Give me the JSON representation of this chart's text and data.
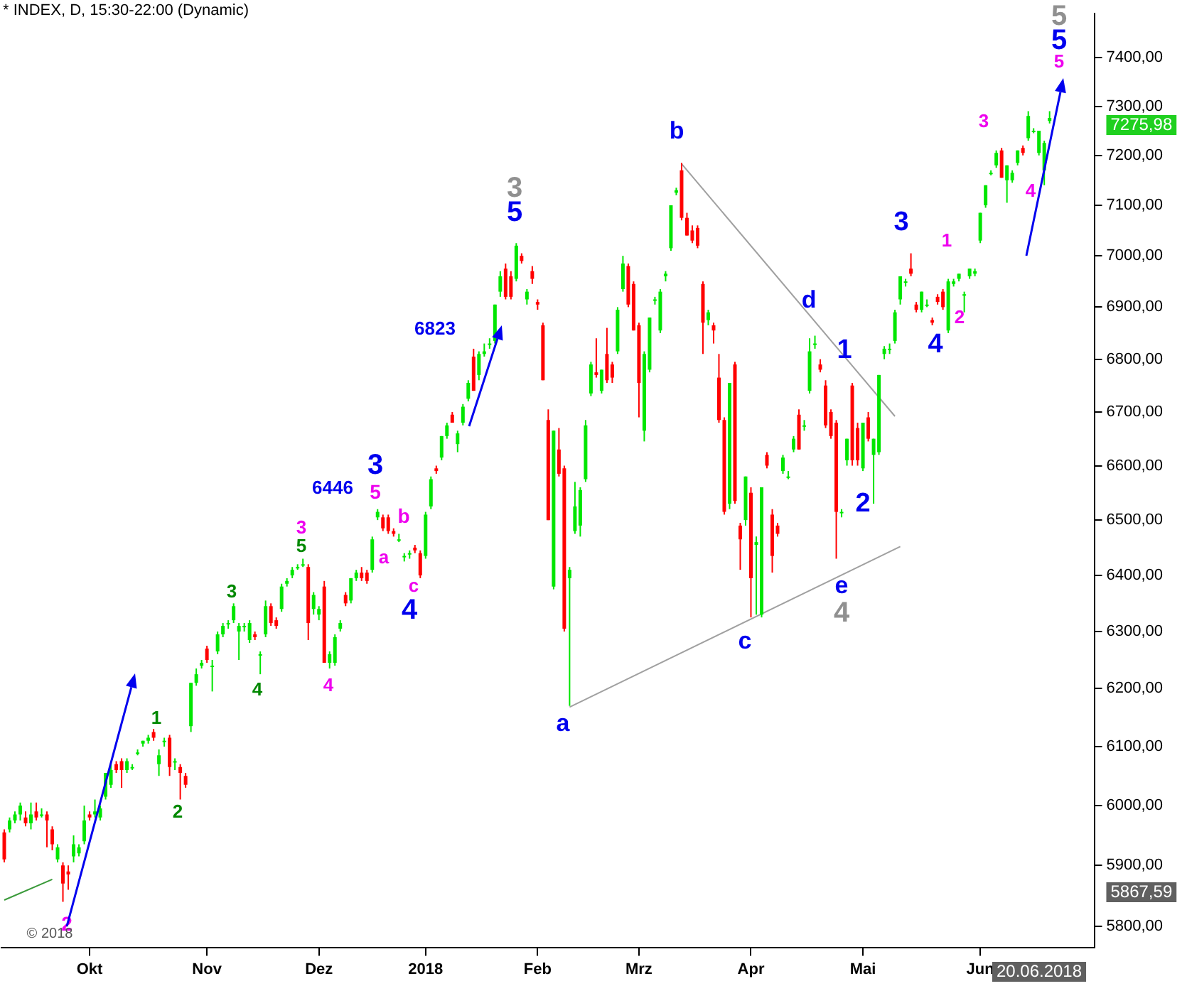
{
  "chart_data": {
    "type": "candlestick",
    "title": "* INDEX, D, 15:30-22:00 (Dynamic)",
    "log": true,
    "categories": [
      null,
      null,
      null,
      null,
      null,
      null,
      null,
      null,
      null,
      null,
      null,
      null,
      null,
      null,
      null,
      null,
      "Okt",
      null,
      null,
      null,
      null,
      null,
      null,
      null,
      null,
      null,
      null,
      null,
      null,
      null,
      null,
      null,
      null,
      null,
      null,
      null,
      null,
      null,
      "Nov",
      null,
      null,
      null,
      null,
      null,
      null,
      null,
      null,
      null,
      null,
      null,
      null,
      null,
      null,
      null,
      null,
      null,
      null,
      null,
      null,
      "Dez",
      null,
      null,
      null,
      null,
      null,
      null,
      null,
      null,
      null,
      null,
      null,
      null,
      null,
      null,
      null,
      null,
      null,
      null,
      null,
      "2018",
      null,
      null,
      null,
      null,
      null,
      null,
      null,
      null,
      null,
      null,
      null,
      null,
      null,
      null,
      null,
      null,
      null,
      null,
      null,
      null,
      "Feb",
      null,
      null,
      null,
      null,
      null,
      null,
      null,
      null,
      null,
      null,
      null,
      null,
      null,
      null,
      null,
      null,
      null,
      null,
      "Mrz",
      null,
      null,
      null,
      null,
      null,
      null,
      null,
      null,
      null,
      null,
      null,
      null,
      null,
      null,
      null,
      null,
      null,
      null,
      null,
      null,
      "Apr",
      null,
      null,
      null,
      null,
      null,
      null,
      null,
      null,
      null,
      null,
      null,
      null,
      null,
      null,
      null,
      null,
      null,
      null,
      null,
      null,
      "Mai",
      null,
      null,
      null,
      null,
      null,
      null,
      null,
      null,
      null,
      null,
      null,
      null,
      null,
      null,
      null,
      null,
      null,
      null,
      null,
      null,
      null,
      "Jun",
      null,
      null,
      null,
      null,
      null,
      null,
      null,
      null,
      null,
      null,
      null,
      null,
      null,
      null,
      null,
      null,
      null,
      null,
      null,
      null,
      null
    ],
    "ohlc": [
      [
        5955,
        5960,
        5905,
        5910
      ],
      [
        5960,
        5980,
        5955,
        5975
      ],
      [
        5975,
        5990,
        5970,
        5985
      ],
      [
        5985,
        6005,
        5975,
        6000
      ],
      [
        5980,
        5990,
        5965,
        5970
      ],
      [
        5970,
        6005,
        5960,
        5985
      ],
      [
        5990,
        6005,
        5975,
        5980
      ],
      [
        5985,
        5995,
        5980,
        5985
      ],
      [
        5985,
        5990,
        5930,
        5975
      ],
      [
        5960,
        5965,
        5925,
        5935
      ],
      [
        5910,
        5935,
        5905,
        5930
      ],
      [
        5900,
        5905,
        5840,
        5870
      ],
      [
        5890,
        5900,
        5860,
        5885
      ],
      [
        5915,
        5950,
        5905,
        5935
      ],
      [
        5920,
        5935,
        5915,
        5930
      ],
      [
        5940,
        6000,
        5935,
        5975
      ],
      [
        5985,
        5990,
        5975,
        5980
      ],
      [
        5985,
        6010,
        5980,
        5990
      ],
      [
        5980,
        6000,
        5975,
        5995
      ],
      [
        6015,
        6055,
        6010,
        6055
      ],
      [
        6035,
        6070,
        6030,
        6060
      ],
      [
        6070,
        6075,
        6055,
        6060
      ],
      [
        6075,
        6080,
        6030,
        6060
      ],
      [
        6060,
        6080,
        6055,
        6075
      ],
      [
        6065,
        6070,
        6060,
        6065
      ],
      [
        6090,
        6095,
        6085,
        6090
      ],
      [
        6105,
        6110,
        6100,
        6110
      ],
      [
        6110,
        6120,
        6105,
        6115
      ],
      [
        6125,
        6130,
        6110,
        6115
      ],
      [
        6070,
        6095,
        6050,
        6085
      ],
      [
        6110,
        6115,
        6100,
        6110
      ],
      [
        6115,
        6120,
        6050,
        6065
      ],
      [
        6075,
        6080,
        6060,
        6075
      ],
      [
        6065,
        6070,
        6010,
        6055
      ],
      [
        6050,
        6055,
        6030,
        6035
      ],
      [
        6135,
        6210,
        6125,
        6210
      ],
      [
        6210,
        6235,
        6205,
        6225
      ],
      [
        6240,
        6250,
        6235,
        6245
      ],
      [
        6270,
        6275,
        6245,
        6250
      ],
      [
        6240,
        6250,
        6195,
        6240
      ],
      [
        6265,
        6300,
        6260,
        6295
      ],
      [
        6295,
        6315,
        6290,
        6310
      ],
      [
        6315,
        6320,
        6305,
        6315
      ],
      [
        6320,
        6350,
        6315,
        6345
      ],
      [
        6300,
        6315,
        6250,
        6310
      ],
      [
        6310,
        6315,
        6300,
        6310
      ],
      [
        6285,
        6320,
        6280,
        6315
      ],
      [
        6295,
        6300,
        6285,
        6290
      ],
      [
        6260,
        6265,
        6225,
        6260
      ],
      [
        6295,
        6355,
        6290,
        6345
      ],
      [
        6345,
        6350,
        6310,
        6315
      ],
      [
        6320,
        6325,
        6305,
        6310
      ],
      [
        6340,
        6385,
        6335,
        6380
      ],
      [
        6385,
        6395,
        6380,
        6390
      ],
      [
        6400,
        6415,
        6395,
        6410
      ],
      [
        6415,
        6420,
        6410,
        6415
      ],
      [
        6420,
        6430,
        6415,
        6420
      ],
      [
        6415,
        6420,
        6285,
        6315
      ],
      [
        6340,
        6370,
        6330,
        6365
      ],
      [
        6330,
        6345,
        6320,
        6340
      ],
      [
        6380,
        6390,
        6245,
        6245
      ],
      [
        6245,
        6265,
        6235,
        6260
      ],
      [
        6245,
        6295,
        6240,
        6290
      ],
      [
        6305,
        6320,
        6300,
        6315
      ],
      [
        6365,
        6370,
        6345,
        6350
      ],
      [
        6355,
        6395,
        6350,
        6395
      ],
      [
        6395,
        6410,
        6390,
        6405
      ],
      [
        6405,
        6415,
        6390,
        6395
      ],
      [
        6405,
        6410,
        6385,
        6390
      ],
      [
        6410,
        6470,
        6405,
        6465
      ],
      [
        6505,
        6520,
        6500,
        6515
      ],
      [
        6505,
        6510,
        6480,
        6485
      ],
      [
        6505,
        6510,
        6475,
        6480
      ],
      [
        6480,
        6485,
        6470,
        6475
      ],
      [
        6465,
        6475,
        6460,
        6465
      ],
      [
        6435,
        6440,
        6425,
        6435
      ],
      [
        6440,
        6445,
        6430,
        6440
      ],
      [
        6450,
        6455,
        6440,
        6445
      ],
      [
        6440,
        6445,
        6395,
        6400
      ],
      [
        6435,
        6515,
        6430,
        6510
      ],
      [
        6525,
        6580,
        6520,
        6575
      ],
      [
        6595,
        6600,
        6585,
        6590
      ],
      [
        6615,
        6655,
        6610,
        6655
      ],
      [
        6655,
        6680,
        6650,
        6675
      ],
      [
        6695,
        6700,
        6680,
        6680
      ],
      [
        6640,
        6665,
        6625,
        6660
      ],
      [
        6680,
        6715,
        6675,
        6710
      ],
      [
        6725,
        6760,
        6720,
        6755
      ],
      [
        6805,
        6820,
        6740,
        6740
      ],
      [
        6770,
        6815,
        6760,
        6810
      ],
      [
        6810,
        6830,
        6805,
        6815
      ],
      [
        6830,
        6840,
        6820,
        6830
      ],
      [
        6835,
        6905,
        6830,
        6905
      ],
      [
        6930,
        6970,
        6920,
        6960
      ],
      [
        6975,
        6985,
        6915,
        6920
      ],
      [
        6960,
        6970,
        6915,
        6920
      ],
      [
        6955,
        7025,
        6950,
        7020
      ],
      [
        7000,
        7005,
        6985,
        6990
      ],
      [
        6915,
        6935,
        6905,
        6930
      ],
      [
        6970,
        6980,
        6945,
        6955
      ],
      [
        6910,
        6915,
        6895,
        6905
      ],
      [
        6865,
        6870,
        6760,
        6760
      ],
      [
        6685,
        6705,
        6500,
        6500
      ],
      [
        6380,
        6665,
        6375,
        6665
      ],
      [
        6630,
        6670,
        6580,
        6585
      ],
      [
        6595,
        6600,
        6300,
        6305
      ],
      [
        6395,
        6415,
        6170,
        6410
      ],
      [
        6480,
        6570,
        6475,
        6525
      ],
      [
        6490,
        6560,
        6470,
        6555
      ],
      [
        6575,
        6685,
        6570,
        6675
      ],
      [
        6735,
        6795,
        6730,
        6790
      ],
      [
        6775,
        6840,
        6765,
        6770
      ],
      [
        6740,
        6780,
        6735,
        6780
      ],
      [
        6810,
        6860,
        6755,
        6760
      ],
      [
        6790,
        6795,
        6755,
        6765
      ],
      [
        6815,
        6900,
        6810,
        6895
      ],
      [
        6935,
        7000,
        6930,
        6985
      ],
      [
        6980,
        6985,
        6900,
        6905
      ],
      [
        6945,
        6950,
        6855,
        6855
      ],
      [
        6865,
        6870,
        6690,
        6755
      ],
      [
        6665,
        6815,
        6645,
        6810
      ],
      [
        6780,
        6880,
        6775,
        6880
      ],
      [
        6915,
        6920,
        6905,
        6915
      ],
      [
        6855,
        6935,
        6850,
        6930
      ],
      [
        6960,
        6970,
        6950,
        6965
      ],
      [
        7015,
        7100,
        7010,
        7100
      ],
      [
        7125,
        7135,
        7120,
        7130
      ],
      [
        7170,
        7185,
        7070,
        7075
      ],
      [
        7075,
        7085,
        7040,
        7040
      ],
      [
        7050,
        7060,
        7025,
        7030
      ],
      [
        7055,
        7060,
        7015,
        7020
      ],
      [
        6945,
        6950,
        6810,
        6870
      ],
      [
        6875,
        6895,
        6865,
        6890
      ],
      [
        6865,
        6870,
        6830,
        6855
      ],
      [
        6765,
        6810,
        6680,
        6685
      ],
      [
        6685,
        6690,
        6510,
        6515
      ],
      [
        6530,
        6755,
        6520,
        6755
      ],
      [
        6790,
        6795,
        6530,
        6535
      ],
      [
        6490,
        6495,
        6410,
        6465
      ],
      [
        6500,
        6580,
        6490,
        6580
      ],
      [
        6550,
        6560,
        6325,
        6395
      ],
      [
        6455,
        6470,
        6330,
        6460
      ],
      [
        6330,
        6560,
        6325,
        6560
      ],
      [
        6620,
        6625,
        6595,
        6600
      ],
      [
        6510,
        6520,
        6405,
        6435
      ],
      [
        6490,
        6495,
        6470,
        6475
      ],
      [
        6590,
        6620,
        6585,
        6615
      ],
      [
        6580,
        6590,
        6575,
        6580
      ],
      [
        6630,
        6655,
        6625,
        6650
      ],
      [
        6695,
        6705,
        6630,
        6630
      ],
      [
        6675,
        6685,
        6665,
        6675
      ],
      [
        6740,
        6840,
        6735,
        6815
      ],
      [
        6830,
        6845,
        6820,
        6830
      ],
      [
        6790,
        6800,
        6775,
        6780
      ],
      [
        6750,
        6760,
        6670,
        6675
      ],
      [
        6700,
        6705,
        6650,
        6655
      ],
      [
        6680,
        6685,
        6430,
        6515
      ],
      [
        6515,
        6520,
        6505,
        6515
      ],
      [
        6610,
        6650,
        6600,
        6650
      ],
      [
        6750,
        6755,
        6600,
        6610
      ],
      [
        6670,
        6680,
        6600,
        6610
      ],
      [
        6595,
        6680,
        6590,
        6680
      ],
      [
        6690,
        6700,
        6645,
        6650
      ],
      [
        6620,
        6650,
        6530,
        6650
      ],
      [
        6625,
        6770,
        6620,
        6770
      ],
      [
        6810,
        6825,
        6800,
        6820
      ],
      [
        6820,
        6830,
        6810,
        6820
      ],
      [
        6835,
        6895,
        6830,
        6890
      ],
      [
        6915,
        6960,
        6905,
        6960
      ],
      [
        6950,
        6955,
        6940,
        6950
      ],
      [
        6975,
        7005,
        6960,
        6965
      ],
      [
        6905,
        6910,
        6890,
        6895
      ],
      [
        6895,
        6930,
        6890,
        6930
      ],
      [
        6905,
        6915,
        6900,
        6905
      ],
      [
        6875,
        6880,
        6865,
        6870
      ],
      [
        6920,
        6925,
        6905,
        6910
      ],
      [
        6930,
        6935,
        6895,
        6900
      ],
      [
        6855,
        6955,
        6850,
        6950
      ],
      [
        6945,
        6955,
        6940,
        6950
      ],
      [
        6955,
        6965,
        6950,
        6965
      ],
      [
        6925,
        6930,
        6890,
        6925
      ],
      [
        6960,
        6975,
        6955,
        6975
      ],
      [
        6965,
        6975,
        6960,
        6970
      ],
      [
        7030,
        7085,
        7025,
        7085
      ],
      [
        7100,
        7140,
        7095,
        7140
      ],
      [
        7165,
        7170,
        7160,
        7165
      ],
      [
        7180,
        7210,
        7175,
        7205
      ],
      [
        7210,
        7215,
        7155,
        7155
      ],
      [
        7150,
        7180,
        7105,
        7180
      ],
      [
        7150,
        7170,
        7145,
        7165
      ],
      [
        7185,
        7210,
        7180,
        7210
      ],
      [
        7215,
        7220,
        7200,
        7205
      ],
      [
        7235,
        7290,
        7230,
        7280
      ],
      [
        7250,
        7255,
        7245,
        7250
      ],
      [
        7205,
        7250,
        7200,
        7250
      ],
      [
        7170,
        7230,
        7140,
        7225
      ],
      [
        7270,
        7290,
        7265,
        7275.98
      ],
      null,
      null,
      null,
      null,
      null,
      null,
      null,
      null
    ],
    "colors": [
      "#ff0000",
      "#00e600",
      "#00e600",
      "#00e600",
      "#ff0000",
      "#00e600",
      "#ff0000",
      "#00e600",
      "#ff0000",
      "#ff0000",
      "#00e600",
      "#ff0000",
      "#ff0000",
      "#00e600",
      "#00e600",
      "#00e600",
      "#ff0000",
      "#00e600",
      "#00e600",
      "#00e600",
      "#00e600",
      "#ff0000",
      "#ff0000",
      "#00e600",
      "#00e600",
      "#00e600",
      "#00e600",
      "#00e600",
      "#ff0000",
      "#00e600",
      "#00e600",
      "#ff0000",
      "#00e600",
      "#ff0000",
      "#ff0000",
      "#00e600",
      "#00e600",
      "#00e600",
      "#ff0000",
      "#00e600",
      "#00e600",
      "#00e600",
      "#00e600",
      "#00e600",
      "#00e600",
      "#00e600",
      "#00e600",
      "#ff0000",
      "#00e600",
      "#00e600",
      "#ff0000",
      "#ff0000",
      "#00e600",
      "#00e600",
      "#00e600",
      "#00e600",
      "#00e600",
      "#ff0000",
      "#00e600",
      "#00e600",
      "#ff0000",
      "#00e600",
      "#00e600",
      "#00e600",
      "#ff0000",
      "#00e600",
      "#00e600",
      "#ff0000",
      "#ff0000",
      "#00e600",
      "#00e600",
      "#ff0000",
      "#ff0000",
      "#ff0000",
      "#00e600",
      "#00e600",
      "#00e600",
      "#ff0000",
      "#ff0000",
      "#00e600",
      "#00e600",
      "#ff0000",
      "#00e600",
      "#00e600",
      "#ff0000",
      "#00e600",
      "#00e600",
      "#00e600",
      "#ff0000",
      "#00e600",
      "#00e600",
      "#00e600",
      "#00e600",
      "#00e600",
      "#ff0000",
      "#ff0000",
      "#00e600",
      "#ff0000",
      "#00e600",
      "#ff0000",
      "#ff0000",
      "#ff0000",
      "#ff0000",
      "#00e600",
      "#ff0000",
      "#ff0000",
      "#00e600",
      "#00e600",
      "#00e600",
      "#00e600",
      "#00e600",
      "#ff0000",
      "#00e600",
      "#ff0000",
      "#ff0000",
      "#00e600",
      "#00e600",
      "#ff0000",
      "#ff0000",
      "#ff0000",
      "#00e600",
      "#00e600",
      "#00e600",
      "#00e600",
      "#00e600",
      "#00e600",
      "#00e600",
      "#ff0000",
      "#ff0000",
      "#ff0000",
      "#ff0000",
      "#ff0000",
      "#00e600",
      "#ff0000",
      "#ff0000",
      "#ff0000",
      "#00e600",
      "#ff0000",
      "#ff0000",
      "#00e600",
      "#ff0000",
      "#00e600",
      "#00e600",
      "#ff0000",
      "#ff0000",
      "#ff0000",
      "#00e600",
      "#00e600",
      "#00e600",
      "#ff0000",
      "#00e600",
      "#00e600",
      "#00e600",
      "#ff0000",
      "#ff0000",
      "#ff0000",
      "#ff0000",
      "#00e600",
      "#00e600",
      "#ff0000",
      "#ff0000",
      "#00e600",
      "#ff0000",
      "#00e600",
      "#00e600",
      "#00e600",
      "#00e600",
      "#00e600",
      "#00e600",
      "#00e600",
      "#ff0000",
      "#ff0000",
      "#00e600",
      "#00e600",
      "#ff0000",
      "#ff0000",
      "#ff0000",
      "#00e600",
      "#00e600",
      "#00e600",
      "#00e600",
      "#00e600",
      "#00e600",
      "#00e600",
      "#00e600",
      "#00e600",
      "#00e600",
      "#ff0000",
      "#00e600",
      "#00e600",
      "#00e600",
      "#ff0000",
      "#00e600",
      "#00e600",
      "#00e600",
      "#00e600",
      "#00e600",
      null,
      null,
      null,
      null,
      null,
      null,
      null,
      null
    ],
    "series": [
      {
        "type": "line",
        "color": "#a0a0a0",
        "values": [
          null,
          null,
          null,
          null,
          null,
          null,
          null,
          null,
          null,
          null,
          null,
          null,
          null,
          null,
          null,
          null,
          null,
          null,
          null,
          null,
          null,
          null,
          null,
          null,
          null,
          null,
          null,
          null,
          null,
          null,
          null,
          null,
          null,
          null,
          null,
          null,
          null,
          null,
          null,
          null,
          null,
          null,
          null,
          null,
          null,
          null,
          null,
          null,
          null,
          null,
          null,
          null,
          null,
          null,
          null,
          null,
          null,
          null,
          null,
          null,
          null,
          null,
          null,
          null,
          null,
          null,
          null,
          null,
          null,
          null,
          null,
          null,
          null,
          null,
          null,
          null,
          null,
          null,
          null,
          null,
          null,
          null,
          null,
          null,
          null,
          null,
          null,
          null,
          null,
          null,
          null,
          null,
          null,
          null,
          null,
          null,
          null,
          null,
          null,
          null,
          null,
          null,
          null,
          null,
          null,
          null,
          null,
          null,
          null,
          null,
          null,
          null,
          null,
          null,
          null,
          null,
          null,
          null,
          null,
          null,
          null,
          null,
          null,
          null,
          null,
          null,
          null,
          7183,
          null,
          null,
          null,
          null,
          null,
          null,
          null,
          null,
          null,
          null,
          null,
          null,
          null,
          null,
          null,
          null,
          null,
          null,
          null,
          null,
          null,
          null,
          null,
          null,
          null,
          null,
          null,
          null,
          null,
          null,
          null,
          null,
          null,
          null,
          null,
          null,
          null,
          null,
          null,
          6692,
          null,
          null,
          null,
          null,
          null,
          null,
          null,
          null,
          null,
          null,
          null,
          null,
          null,
          null,
          null,
          null,
          null,
          null,
          null,
          null,
          null,
          null,
          null,
          null,
          null,
          null,
          null,
          null,
          null,
          null,
          null,
          null,
          null,
          null,
          null,
          null,
          null
        ]
      },
      {
        "type": "line",
        "color": "#a0a0a0",
        "values": [
          null,
          null,
          null,
          null,
          null,
          null,
          null,
          null,
          null,
          null,
          null,
          null,
          null,
          null,
          null,
          null,
          null,
          null,
          null,
          null,
          null,
          null,
          null,
          null,
          null,
          null,
          null,
          null,
          null,
          null,
          null,
          null,
          null,
          null,
          null,
          null,
          null,
          null,
          null,
          null,
          null,
          null,
          null,
          null,
          null,
          null,
          null,
          null,
          null,
          null,
          null,
          null,
          null,
          null,
          null,
          null,
          null,
          null,
          null,
          null,
          null,
          null,
          null,
          null,
          null,
          null,
          null,
          null,
          null,
          null,
          null,
          null,
          null,
          null,
          null,
          null,
          null,
          null,
          null,
          null,
          null,
          null,
          null,
          null,
          null,
          null,
          null,
          null,
          null,
          null,
          null,
          null,
          null,
          null,
          null,
          null,
          null,
          null,
          null,
          null,
          null,
          null,
          null,
          null,
          null,
          null,
          6168,
          null,
          null,
          null,
          null,
          null,
          null,
          null,
          null,
          null,
          null,
          null,
          null,
          null,
          null,
          null,
          null,
          null,
          null,
          null,
          null,
          null,
          null,
          null,
          null,
          null,
          null,
          null,
          null,
          null,
          null,
          null,
          null,
          null,
          null,
          null,
          null,
          null,
          null,
          null,
          null,
          null,
          null,
          null,
          null,
          null,
          null,
          null,
          null,
          null,
          null,
          null,
          null,
          null,
          null,
          null,
          null,
          null,
          null,
          null,
          null,
          null,
          6452,
          null,
          null,
          null,
          null,
          null,
          null,
          null,
          null,
          null,
          null,
          null,
          null,
          null,
          null,
          null,
          null,
          null,
          null,
          null,
          null,
          null,
          null,
          null,
          null,
          null,
          null,
          null,
          null,
          null,
          null,
          null,
          null,
          null,
          null,
          null,
          null
        ]
      },
      {
        "type": "line",
        "color": "#3a9a3a",
        "values": [
          5843,
          null,
          null,
          null,
          null,
          null,
          null,
          null,
          null,
          5877,
          null,
          null,
          null,
          null,
          null,
          null,
          null,
          null,
          null,
          null,
          null,
          null,
          null,
          null,
          null,
          null,
          null,
          null,
          null,
          null,
          null,
          null,
          null,
          null,
          null,
          null,
          null,
          null,
          null,
          null,
          null,
          null,
          null,
          null,
          null,
          null,
          null,
          null,
          null,
          null,
          null,
          null,
          null,
          null,
          null,
          null,
          null,
          null,
          null,
          null,
          null,
          null,
          null,
          null,
          null,
          null,
          null,
          null,
          null,
          null,
          null,
          null,
          null,
          null,
          null,
          null,
          null,
          null,
          null,
          null,
          null,
          null,
          null,
          null,
          null,
          null,
          null,
          null,
          null,
          null,
          null,
          null,
          null,
          null,
          null,
          null,
          null,
          null,
          null,
          null,
          null,
          null,
          null,
          null,
          null,
          null,
          null,
          null,
          null,
          null,
          null,
          null,
          null,
          null,
          null,
          null,
          null,
          null,
          null,
          null,
          null,
          null,
          null,
          null,
          null,
          null,
          null,
          null,
          null,
          null,
          null,
          null,
          null,
          null,
          null,
          null,
          null,
          null,
          null,
          null,
          null,
          null,
          null,
          null,
          null,
          null,
          null,
          null,
          null,
          null,
          null,
          null,
          null,
          null,
          null,
          null,
          null,
          null,
          null,
          null,
          null,
          null,
          null,
          null,
          null,
          null,
          null,
          null,
          null,
          null,
          null,
          null,
          null,
          null,
          null,
          null,
          null,
          null,
          null,
          null,
          null,
          null,
          null,
          null,
          null,
          null,
          null,
          null,
          null,
          null,
          null,
          null,
          null,
          null,
          null,
          null,
          null,
          null,
          null,
          null,
          null,
          null,
          null,
          null,
          null
        ]
      }
    ],
    "ylim": [
      5766,
      7492
    ],
    "yticks": [
      {
        "value": 5800,
        "label": "5800,00"
      },
      {
        "value": 5900,
        "label": "5900,00"
      },
      {
        "value": 6000,
        "label": "6000,00"
      },
      {
        "value": 6100,
        "label": "6100,00"
      },
      {
        "value": 6200,
        "label": "6200,00"
      },
      {
        "value": 6300,
        "label": "6300,00"
      },
      {
        "value": 6400,
        "label": "6400,00"
      },
      {
        "value": 6500,
        "label": "6500,00"
      },
      {
        "value": 6600,
        "label": "6600,00"
      },
      {
        "value": 6700,
        "label": "6700,00"
      },
      {
        "value": 6800,
        "label": "6800,00"
      },
      {
        "value": 6900,
        "label": "6900,00"
      },
      {
        "value": 7000,
        "label": "7000,00"
      },
      {
        "value": 7100,
        "label": "7100,00"
      },
      {
        "value": 7200,
        "label": "7200,00"
      },
      {
        "value": 7300,
        "label": "7300,00"
      },
      {
        "value": 7400,
        "label": "7400,00"
      }
    ],
    "annotations": [
      "2",
      "1",
      "2",
      "3",
      "4",
      "5",
      "3",
      "4",
      "6446",
      "3",
      "5",
      "b",
      "a",
      "c",
      "4",
      "6823",
      "3",
      "5",
      "a",
      "b",
      "c",
      "d",
      "e",
      "4",
      "1",
      "2",
      "3",
      "4",
      "1",
      "2",
      "3",
      "4",
      "5",
      "5",
      "5",
      "5867,59",
      "© 2018",
      "7275,98",
      "20.06.2018"
    ]
  }
}
